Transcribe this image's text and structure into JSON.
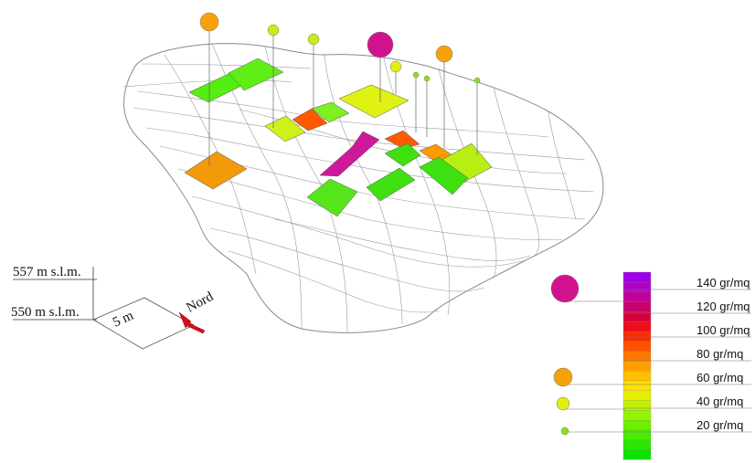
{
  "elevation": {
    "top_label": "557 m s.l.m.",
    "bottom_label": "550 m s.l.m."
  },
  "scale": {
    "distance_label": "5 m",
    "north_label": "Nord"
  },
  "legend": {
    "ticks": [
      {
        "label": "140 gr/mq"
      },
      {
        "label": "120 gr/mq"
      },
      {
        "label": "100 gr/mq"
      },
      {
        "label": "80 gr/mq"
      },
      {
        "label": "60 gr/mq"
      },
      {
        "label": "40 gr/mq"
      },
      {
        "label": "20 gr/mq"
      }
    ],
    "swatches": [
      "#11e000",
      "#2ae600",
      "#4aec00",
      "#6cf000",
      "#94f400",
      "#bff200",
      "#e6ef00",
      "#ffe000",
      "#ffc000",
      "#ff9f00",
      "#ff7800",
      "#ff5200",
      "#ff2a00",
      "#f00c1a",
      "#d8003a",
      "#c8006a",
      "#c00098",
      "#b000c8",
      "#a000e8"
    ],
    "marker_colors": {
      "large": "#d2128c",
      "medium": "#f5a20a",
      "small": "#e2ee12",
      "tiny": "#88e21a"
    }
  },
  "terrain": {
    "outline_color": "#8a8a8a",
    "cells": [
      {
        "color": "#55ee10"
      },
      {
        "color": "#5fef14"
      },
      {
        "color": "#dff214"
      },
      {
        "color": "#ccf21a"
      },
      {
        "color": "#ff5a00"
      },
      {
        "color": "#7ef020"
      },
      {
        "color": "#cc1a9a"
      },
      {
        "color": "#f39a0a"
      },
      {
        "color": "#ff5a00"
      },
      {
        "color": "#ff9a00"
      },
      {
        "color": "#55e51a"
      },
      {
        "color": "#3ee010"
      },
      {
        "color": "#b8ee14"
      },
      {
        "color": "#3ee010"
      },
      {
        "color": "#3ee010"
      }
    ],
    "markers": [
      {
        "color": "#f5a20a"
      },
      {
        "color": "#c8ec1a"
      },
      {
        "color": "#c8ec1a"
      },
      {
        "color": "#d2128c"
      },
      {
        "color": "#e2ee12"
      },
      {
        "color": "#f5a20a"
      },
      {
        "color": "#88e21a"
      },
      {
        "color": "#88e21a"
      },
      {
        "color": "#88e21a"
      }
    ]
  }
}
